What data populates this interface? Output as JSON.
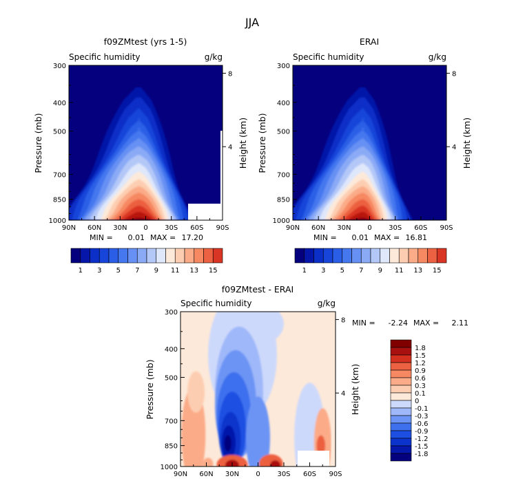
{
  "title": "JJA",
  "chart_data": [
    {
      "type": "heatmap",
      "title": "f09ZMtest (yrs 1-5)",
      "left_label": "Specific humidity",
      "units_label": "g/kg",
      "ylabel": "Pressure (mb)",
      "ylabel_right": "Height (km)",
      "x_ticks": [
        "90N",
        "60N",
        "30N",
        "0",
        "30S",
        "60S",
        "90S"
      ],
      "x_values": [
        90,
        60,
        30,
        0,
        -30,
        -60,
        -90
      ],
      "y_ticks": [
        "300",
        "400",
        "500",
        "700",
        "850",
        "1000"
      ],
      "y_values": [
        300,
        400,
        500,
        700,
        850,
        1000
      ],
      "right_ticks": [
        "8",
        "4"
      ],
      "right_values": [
        8,
        4
      ],
      "stats": {
        "min_label": "MIN =",
        "min": "0.01",
        "max_label": "MAX =",
        "max": "17.20"
      },
      "colorbar_labels": [
        "1",
        "3",
        "5",
        "7",
        "9",
        "11",
        "13",
        "15"
      ],
      "levels": [
        1,
        2,
        3,
        4,
        5,
        6,
        7,
        8,
        9,
        10,
        11,
        12,
        13,
        14,
        15
      ],
      "peak": {
        "lat": 8,
        "value": 17.2
      },
      "missing_region": "surface, 45S-90S"
    },
    {
      "type": "heatmap",
      "title": "ERAI",
      "left_label": "Specific humidity",
      "units_label": "g/kg",
      "ylabel": "Pressure (mb)",
      "ylabel_right": "Height (km)",
      "x_ticks": [
        "90N",
        "60N",
        "30N",
        "0",
        "30S",
        "60S",
        "90S"
      ],
      "x_values": [
        90,
        60,
        30,
        0,
        -30,
        -60,
        -90
      ],
      "y_ticks": [
        "300",
        "400",
        "500",
        "700",
        "850",
        "1000"
      ],
      "y_values": [
        300,
        400,
        500,
        700,
        850,
        1000
      ],
      "right_ticks": [
        "8",
        "4"
      ],
      "right_values": [
        8,
        4
      ],
      "stats": {
        "min_label": "MIN =",
        "min": "0.01",
        "max_label": "MAX =",
        "max": "16.81"
      },
      "colorbar_labels": [
        "1",
        "3",
        "5",
        "7",
        "9",
        "11",
        "13",
        "15"
      ],
      "levels": [
        1,
        2,
        3,
        4,
        5,
        6,
        7,
        8,
        9,
        10,
        11,
        12,
        13,
        14,
        15
      ],
      "peak": {
        "lat": 8,
        "value": 16.81
      }
    },
    {
      "type": "heatmap",
      "title": "f09ZMtest - ERAI",
      "left_label": "Specific humidity",
      "units_label": "g/kg",
      "ylabel": "Pressure (mb)",
      "ylabel_right": "Height (km)",
      "x_ticks": [
        "90N",
        "60N",
        "30N",
        "0",
        "30S",
        "60S",
        "90S"
      ],
      "x_values": [
        90,
        60,
        30,
        0,
        -30,
        -60,
        -90
      ],
      "y_ticks": [
        "300",
        "400",
        "500",
        "700",
        "850",
        "1000"
      ],
      "y_values": [
        300,
        400,
        500,
        700,
        850,
        1000
      ],
      "right_ticks": [
        "8",
        "4"
      ],
      "right_values": [
        8,
        4
      ],
      "stats": {
        "min_label": "MIN =",
        "min": "-2.24",
        "max_label": "MAX =",
        "max": "2.11"
      },
      "colorbar_labels": [
        "1.8",
        "1.5",
        "1.2",
        "0.9",
        "0.6",
        "0.3",
        "0.1",
        "0",
        "-0.1",
        "-0.3",
        "-0.6",
        "-0.9",
        "-1.2",
        "-1.5",
        "-1.8"
      ],
      "levels": [
        -1.8,
        -1.5,
        -1.2,
        -0.9,
        -0.6,
        -0.3,
        -0.1,
        0,
        0.1,
        0.3,
        0.6,
        0.9,
        1.2,
        1.5,
        1.8
      ],
      "missing_region": "surface, 45S-90S"
    }
  ],
  "colors": {
    "seq": [
      "#05007e",
      "#0616a8",
      "#0b2fc7",
      "#1744d9",
      "#2a5ee6",
      "#4577ef",
      "#6690f3",
      "#8baaf6",
      "#b4c8f8",
      "#dfe7fa",
      "#fde9d9",
      "#fdcdb1",
      "#fbab88",
      "#f68862",
      "#ec6141",
      "#d93524",
      "#b8130f",
      "#8c0008"
    ],
    "div": [
      "#05007e",
      "#0618ab",
      "#0c34cc",
      "#1d50e2",
      "#3e70ee",
      "#6c94f5",
      "#9fb8f9",
      "#cdd9fb",
      "#fde9d9",
      "#fdcdb1",
      "#fbab88",
      "#f68862",
      "#ec6141",
      "#d33020",
      "#a91010",
      "#800000"
    ]
  }
}
